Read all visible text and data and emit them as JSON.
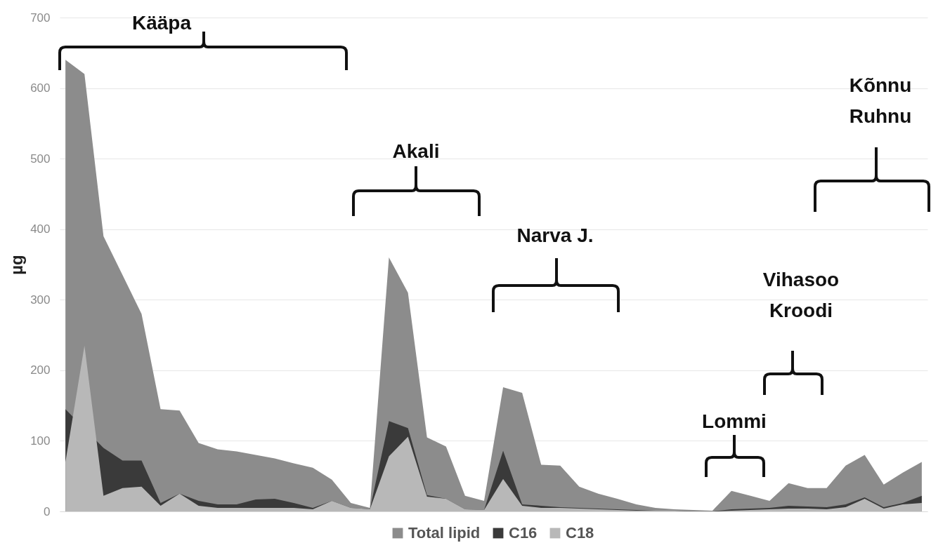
{
  "chart_data": {
    "type": "area",
    "ylabel": "µg",
    "categories": [
      null,
      null,
      null,
      null,
      null,
      null,
      null,
      null,
      null,
      null,
      null,
      null,
      null,
      null,
      null,
      null,
      null,
      null,
      null,
      null,
      null,
      null,
      null,
      null,
      null,
      null,
      null,
      null,
      null,
      null,
      null,
      null,
      null,
      null,
      null,
      null,
      null,
      null,
      null,
      null,
      null,
      null,
      null,
      null,
      null,
      null
    ],
    "series": [
      {
        "name": "Total lipid",
        "color": "#8c8c8c",
        "values": [
          640,
          620,
          390,
          335,
          280,
          145,
          143,
          97,
          88,
          85,
          80,
          75,
          68,
          62,
          45,
          12,
          5,
          360,
          310,
          105,
          92,
          22,
          15,
          176,
          168,
          66,
          65,
          35,
          25,
          18,
          10,
          5,
          3,
          2,
          1,
          29,
          22,
          15,
          40,
          33,
          33,
          65,
          80,
          38,
          55,
          70
        ]
      },
      {
        "name": "C16",
        "color": "#3a3a3a",
        "values": [
          145,
          null,
          90,
          72,
          72,
          12,
          25,
          15,
          10,
          10,
          17,
          18,
          12,
          5,
          15,
          5,
          3,
          128,
          118,
          23,
          18,
          3,
          2,
          86,
          10,
          8,
          6,
          5,
          4,
          3,
          2,
          1,
          1,
          0,
          0,
          3,
          4,
          5,
          8,
          7,
          6,
          10,
          20,
          6,
          12,
          22
        ]
      },
      {
        "name": "C18",
        "color": "#b8b8b8",
        "values": [
          70,
          235,
          22,
          33,
          35,
          8,
          25,
          8,
          5,
          5,
          5,
          5,
          5,
          3,
          15,
          5,
          3,
          78,
          106,
          21,
          18,
          3,
          2,
          46,
          8,
          5,
          5,
          4,
          3,
          2,
          1,
          1,
          1,
          0,
          0,
          1,
          2,
          3,
          4,
          4,
          3,
          6,
          18,
          4,
          10,
          12
        ]
      }
    ],
    "ylim": [
      0,
      700
    ],
    "yticks": [
      0,
      100,
      200,
      300,
      400,
      500,
      600,
      700
    ],
    "grid": "y",
    "legend": "bottom",
    "tick_labels": "y",
    "annotations": [
      "Kääpa",
      "Akali",
      "Narva J.",
      "Lommi",
      "Vihasoo\nKroodi",
      "Kõnnu\nRuhnu"
    ]
  }
}
